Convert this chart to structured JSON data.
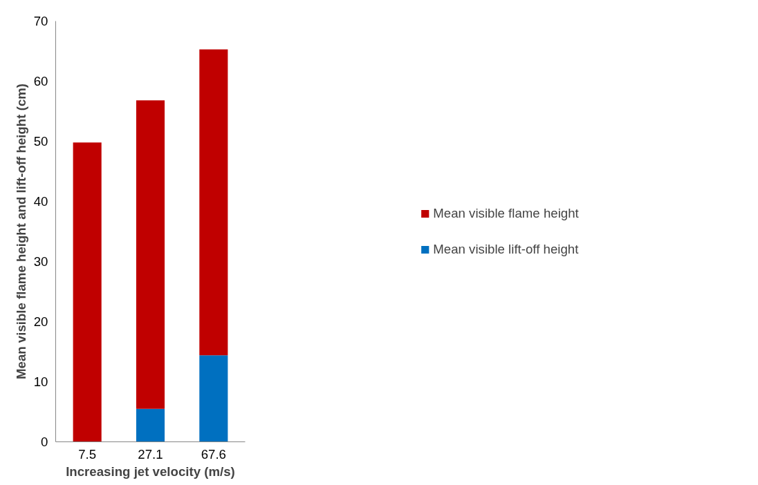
{
  "chart_data": {
    "type": "bar",
    "stacked": true,
    "xlabel": "Increasing jet velocity (m/s)",
    "ylabel": "Mean visible flame height and lift-off height (cm)",
    "categories": [
      "7.5",
      "27.1",
      "67.6"
    ],
    "series": [
      {
        "name": "Mean visible lift-off height",
        "color": "#0070c0",
        "values": [
          0,
          5.5,
          14.4
        ]
      },
      {
        "name": "Mean visible flame height",
        "color": "#c00000",
        "values": [
          49.8,
          51.3,
          50.9
        ]
      }
    ],
    "ylim": [
      0,
      70
    ],
    "yticks": [
      0,
      10,
      20,
      30,
      40,
      50,
      60,
      70
    ],
    "grid": false,
    "legend": "right"
  }
}
